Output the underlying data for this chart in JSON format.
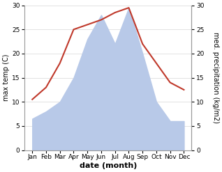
{
  "months": [
    "Jan",
    "Feb",
    "Mar",
    "Apr",
    "May",
    "Jun",
    "Jul",
    "Aug",
    "Sep",
    "Oct",
    "Nov",
    "Dec"
  ],
  "temperature": [
    10.5,
    13.0,
    18.0,
    25.0,
    26.0,
    27.0,
    28.5,
    29.5,
    22.0,
    18.0,
    14.0,
    12.5
  ],
  "precipitation": [
    6.5,
    8.0,
    10.0,
    15.0,
    23.0,
    28.0,
    22.0,
    29.5,
    20.0,
    10.0,
    6.0,
    6.0
  ],
  "temp_color": "#c0392b",
  "precip_fill_color": "#b8c9e8",
  "ylim": [
    0,
    30
  ],
  "yticks": [
    0,
    5,
    10,
    15,
    20,
    25,
    30
  ],
  "ylabel_left": "max temp (C)",
  "ylabel_right": "med. precipitation (kg/m2)",
  "xlabel": "date (month)",
  "background_color": "#ffffff",
  "spine_color": "#999999",
  "grid_color": "#dddddd",
  "tick_fontsize": 6.5,
  "ylabel_fontsize": 7.0,
  "xlabel_fontsize": 8.0
}
